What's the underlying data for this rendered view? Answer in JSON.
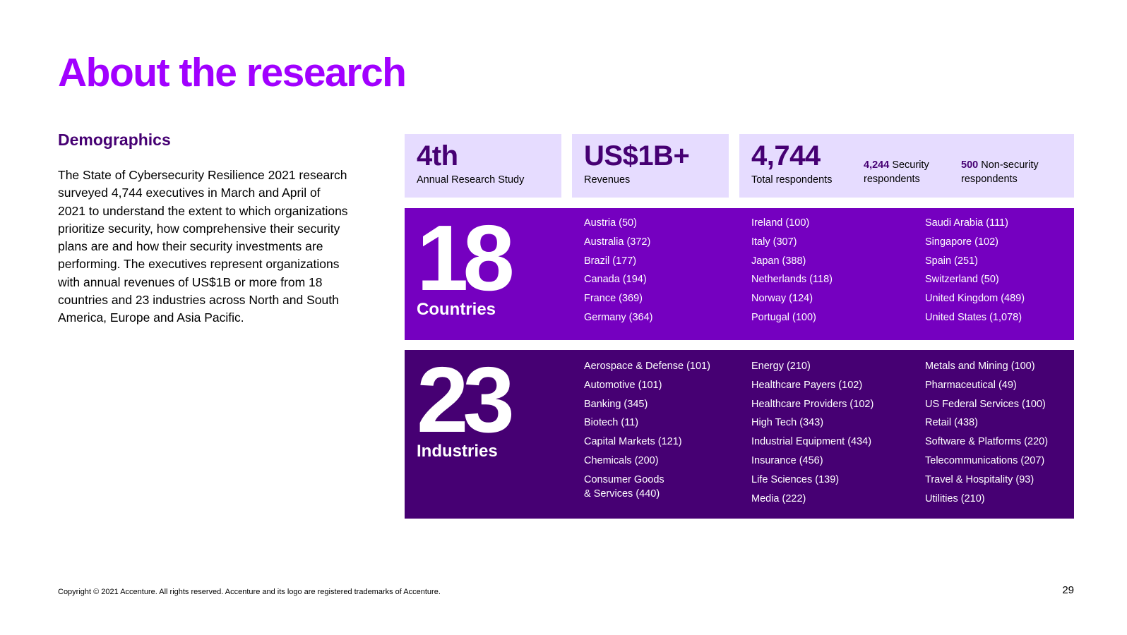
{
  "title": "About the research",
  "demographics": {
    "heading": "Demographics",
    "body": "The State of Cybersecurity Resilience 2021 research surveyed 4,744 executives in March and April of 2021 to understand the extent to which organizations prioritize security, how comprehensive their security plans are and how their security investments are performing. The executives represent organizations with annual revenues of US$1B or more from 18 countries and 23 industries across North and South America, Europe and Asia Pacific."
  },
  "stats": {
    "study": {
      "value": "4th",
      "label": "Annual Research Study"
    },
    "revenues": {
      "value": "US$1B+",
      "label": "Revenues"
    },
    "respondents": {
      "value": "4,744",
      "label": "Total respondents",
      "security_value": "4,244",
      "security_label": " Security respondents",
      "nonsecurity_value": "500",
      "nonsecurity_label": " Non-security respondents"
    }
  },
  "countries": {
    "count": "18",
    "label": "Countries",
    "columns": [
      [
        "Austria (50)",
        "Australia (372)",
        "Brazil (177)",
        "Canada (194)",
        "France (369)",
        "Germany (364)"
      ],
      [
        "Ireland (100)",
        "Italy (307)",
        "Japan (388)",
        "Netherlands (118)",
        "Norway (124)",
        "Portugal (100)"
      ],
      [
        "Saudi Arabia (111)",
        "Singapore (102)",
        "Spain (251)",
        "Switzerland (50)",
        "United Kingdom (489)",
        "United States (1,078)"
      ]
    ]
  },
  "industries": {
    "count": "23",
    "label": "Industries",
    "columns": [
      [
        "Aerospace & Defense (101)",
        "Automotive (101)",
        "Banking (345)",
        "Biotech (11)",
        "Capital Markets (121)",
        "Chemicals (200)",
        "Consumer Goods\n& Services (440)"
      ],
      [
        "Energy (210)",
        "Healthcare Payers (102)",
        "Healthcare Providers (102)",
        "High Tech (343)",
        "Industrial Equipment (434)",
        "Insurance (456)",
        "Life Sciences (139)",
        "Media (222)"
      ],
      [
        "Metals and Mining (100)",
        "Pharmaceutical (49)",
        "US Federal Services (100)",
        "Retail (438)",
        "Software & Platforms (220)",
        "Telecommunications (207)",
        "Travel & Hospitality (93)",
        "Utilities (210)"
      ]
    ]
  },
  "footer": {
    "copyright": "Copyright © 2021 Accenture. All rights reserved. Accenture and its logo are registered trademarks of Accenture.",
    "page_number": "29"
  },
  "colors": {
    "accent_purple": "#a100ff",
    "dark_purple": "#460073",
    "mid_purple": "#7500c0",
    "light_lavender": "#e6dcff"
  }
}
